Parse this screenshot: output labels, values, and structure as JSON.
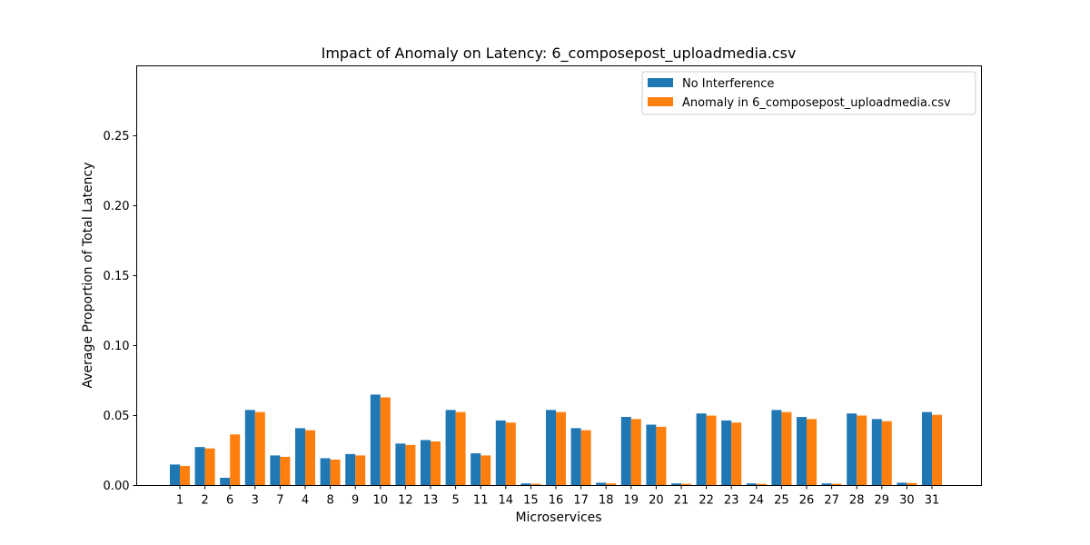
{
  "chart_data": {
    "type": "bar",
    "title": "Impact of Anomaly on Latency: 6_composepost_uploadmedia.csv",
    "xlabel": "Microservices",
    "ylabel": "Average Proportion of Total Latency",
    "ylim": [
      0,
      0.3
    ],
    "yticks": [
      "0.00",
      "0.05",
      "0.10",
      "0.15",
      "0.20",
      "0.25"
    ],
    "grid": false,
    "legend_position": "top-right",
    "categories": [
      "1",
      "2",
      "6",
      "3",
      "7",
      "4",
      "8",
      "9",
      "10",
      "12",
      "13",
      "5",
      "11",
      "14",
      "15",
      "16",
      "17",
      "18",
      "19",
      "20",
      "21",
      "22",
      "23",
      "24",
      "25",
      "26",
      "27",
      "28",
      "29",
      "30",
      "31"
    ],
    "series": [
      {
        "name": "No Interference",
        "color": "#1f77b4",
        "values": [
          0.015,
          0.0275,
          0.0055,
          0.054,
          0.0215,
          0.041,
          0.0195,
          0.0225,
          0.065,
          0.03,
          0.0325,
          0.054,
          0.023,
          0.0465,
          0.0015,
          0.054,
          0.041,
          0.002,
          0.049,
          0.0435,
          0.0015,
          0.0515,
          0.0465,
          0.0015,
          0.054,
          0.049,
          0.0015,
          0.0515,
          0.0475,
          0.002,
          0.0525
        ]
      },
      {
        "name": "Anomaly in 6_composepost_uploadmedia.csv",
        "color": "#ff7f0e",
        "values": [
          0.014,
          0.0265,
          0.0365,
          0.0525,
          0.0205,
          0.0395,
          0.0185,
          0.0215,
          0.063,
          0.029,
          0.0315,
          0.0525,
          0.0215,
          0.045,
          0.0012,
          0.0525,
          0.0395,
          0.0015,
          0.0475,
          0.042,
          0.0012,
          0.05,
          0.045,
          0.0012,
          0.0525,
          0.0475,
          0.0012,
          0.05,
          0.046,
          0.0018,
          0.0505
        ]
      }
    ]
  }
}
